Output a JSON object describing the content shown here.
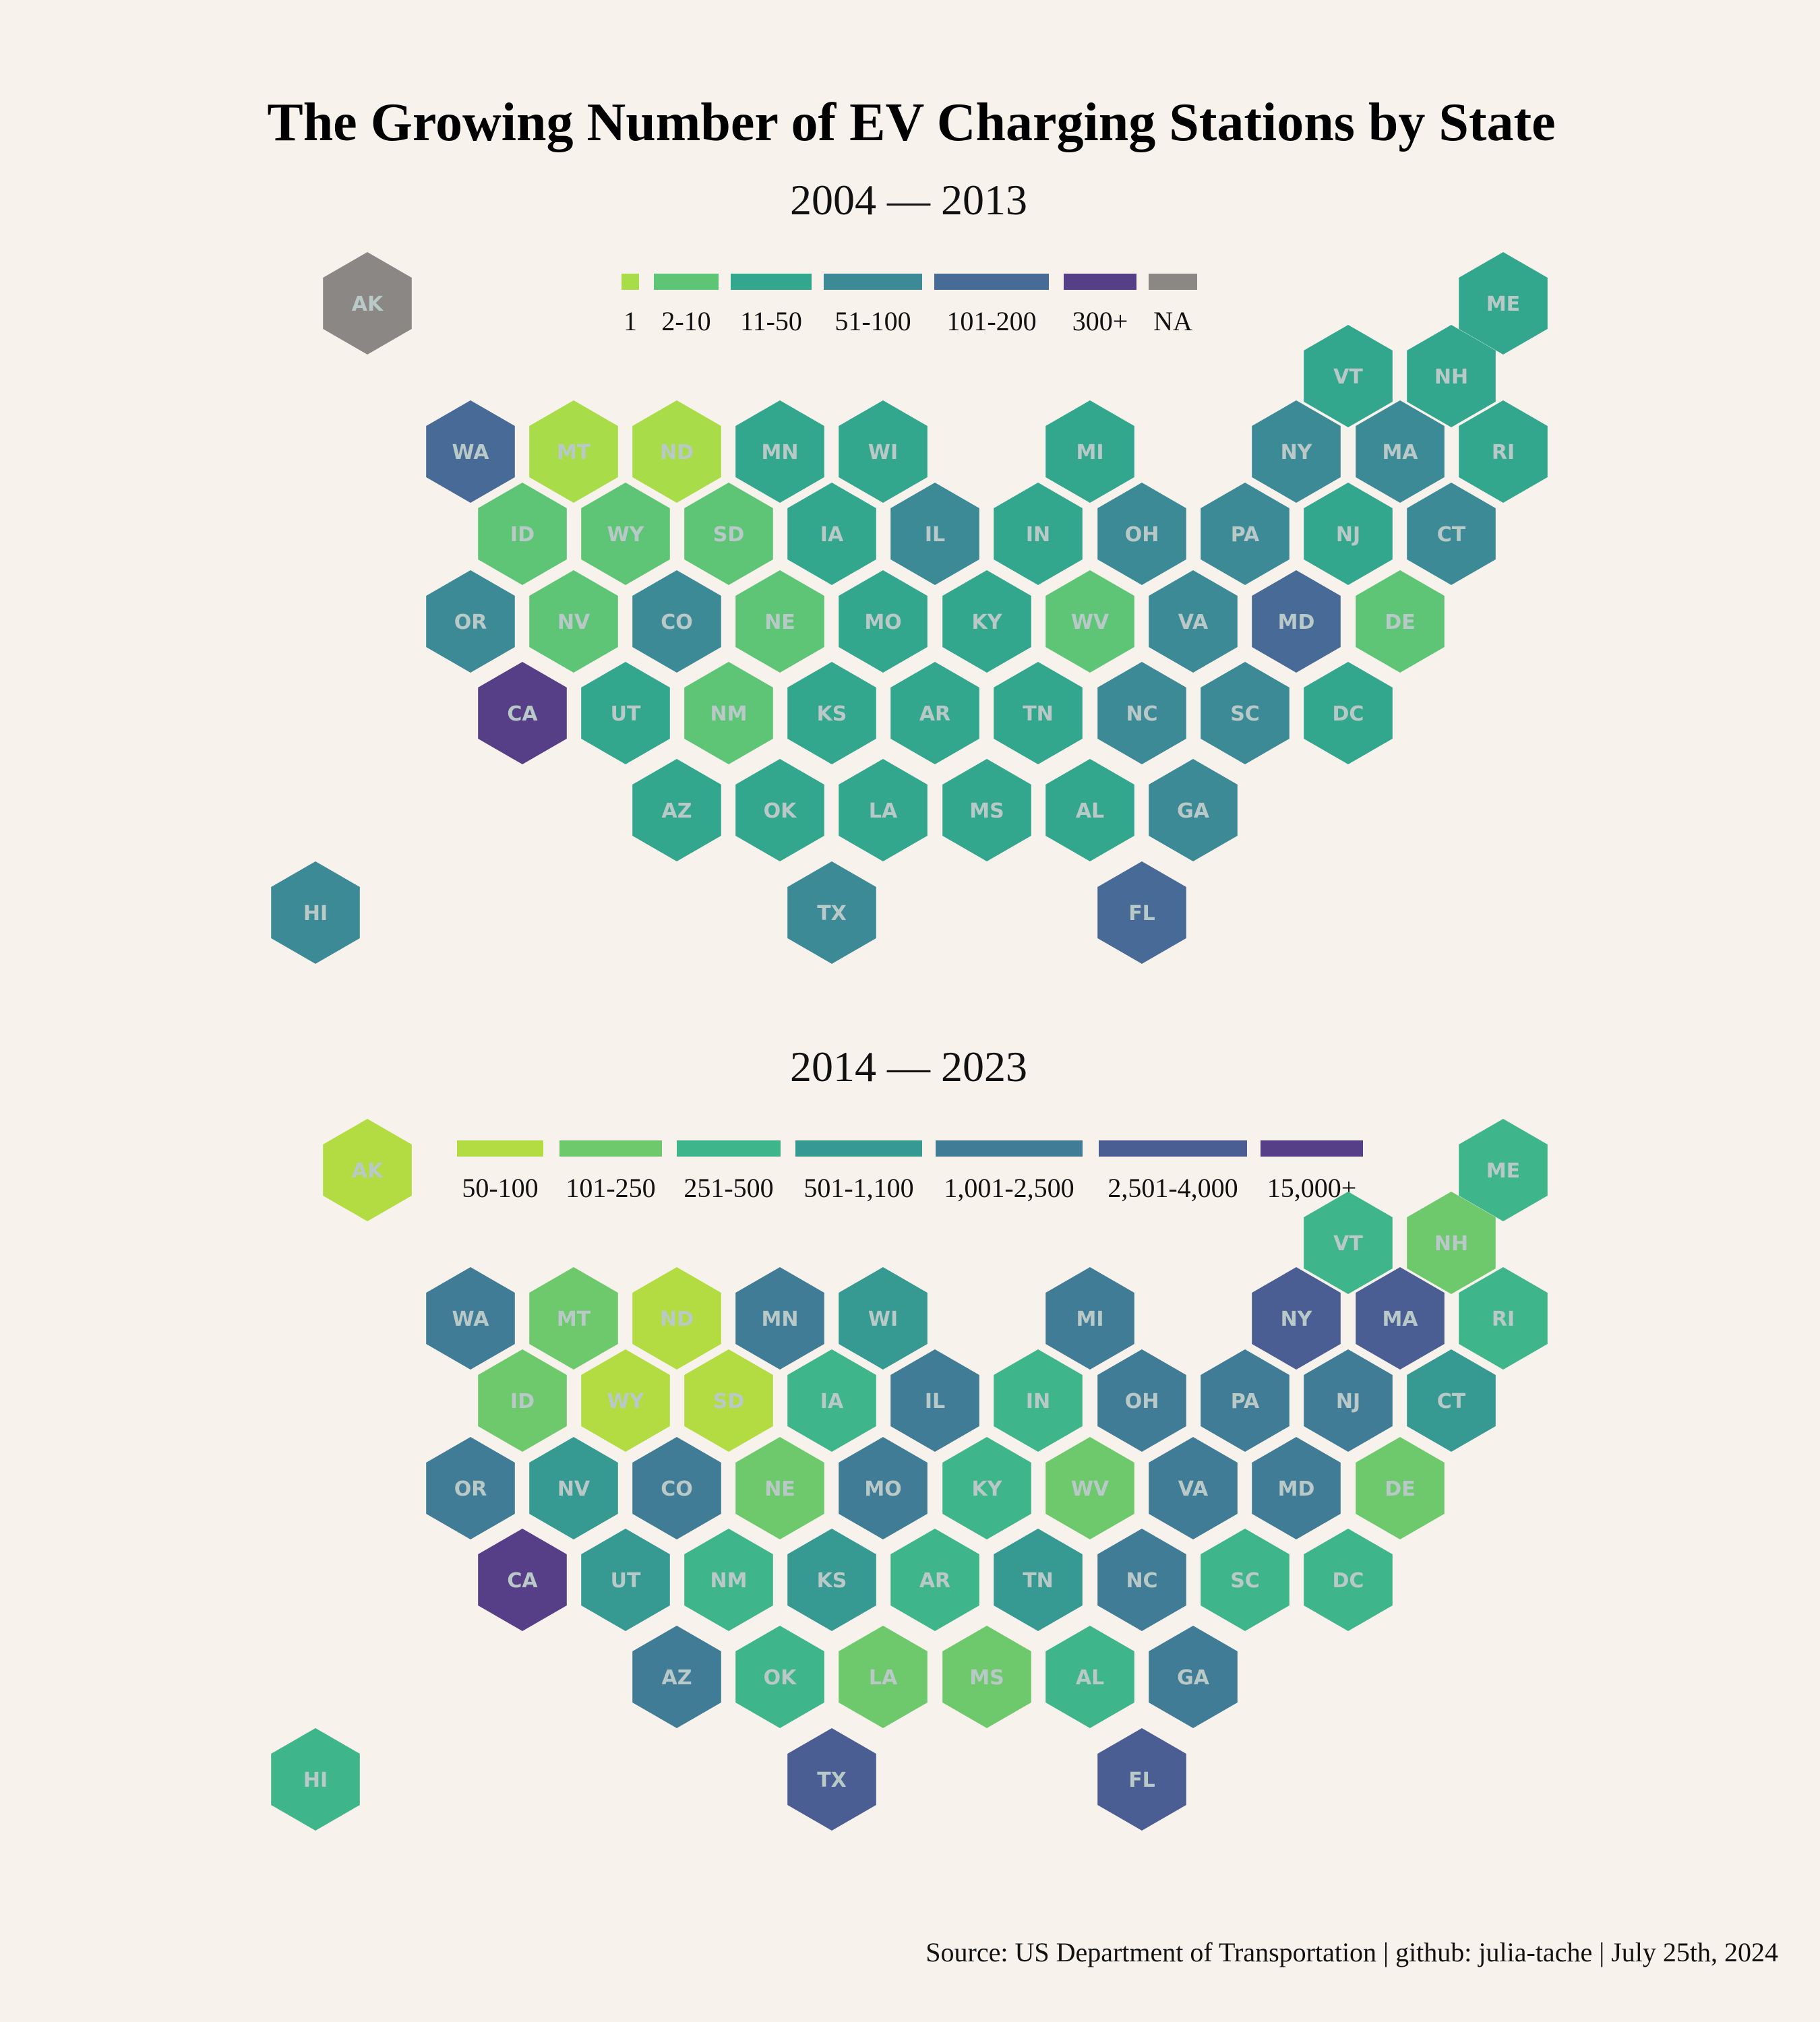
{
  "title": "The Growing Number of EV Charging Stations by State",
  "source": "Source: US Department of Transportation | github: julia-tache | July 25th, 2024",
  "chart_data": [
    {
      "type": "hex tile map",
      "subtitle": "2004 — 2013",
      "legend": [
        {
          "label": "1",
          "color": "#a8dc48"
        },
        {
          "label": "2-10",
          "color": "#5ec576"
        },
        {
          "label": "11-50",
          "color": "#33a78d"
        },
        {
          "label": "51-100",
          "color": "#3d8a97"
        },
        {
          "label": "101-200",
          "color": "#486a97"
        },
        {
          "label": "300+",
          "color": "#573f88"
        },
        {
          "label": "NA",
          "color": "#8a8785"
        }
      ],
      "states": {
        "AK": "NA",
        "ME": "11-50",
        "VT": "11-50",
        "NH": "11-50",
        "WA": "101-200",
        "MT": "1",
        "ND": "1",
        "MN": "11-50",
        "WI": "11-50",
        "MI": "11-50",
        "NY": "51-100",
        "MA": "51-100",
        "RI": "11-50",
        "ID": "2-10",
        "WY": "2-10",
        "SD": "2-10",
        "IA": "11-50",
        "IL": "51-100",
        "IN": "11-50",
        "OH": "51-100",
        "PA": "51-100",
        "NJ": "11-50",
        "CT": "51-100",
        "OR": "51-100",
        "NV": "2-10",
        "CO": "51-100",
        "NE": "2-10",
        "MO": "11-50",
        "KY": "11-50",
        "WV": "2-10",
        "VA": "51-100",
        "MD": "101-200",
        "DE": "2-10",
        "CA": "300+",
        "UT": "11-50",
        "NM": "2-10",
        "KS": "11-50",
        "AR": "11-50",
        "TN": "11-50",
        "NC": "51-100",
        "SC": "51-100",
        "DC": "11-50",
        "AZ": "11-50",
        "OK": "11-50",
        "LA": "11-50",
        "MS": "11-50",
        "AL": "11-50",
        "GA": "51-100",
        "HI": "51-100",
        "TX": "51-100",
        "FL": "101-200"
      }
    },
    {
      "type": "hex tile map",
      "subtitle": "2014 — 2023",
      "legend": [
        {
          "label": "50-100",
          "color": "#b2dc42"
        },
        {
          "label": "101-250",
          "color": "#6dc96c"
        },
        {
          "label": "251-500",
          "color": "#3eb58a"
        },
        {
          "label": "501-1,100",
          "color": "#369992"
        },
        {
          "label": "1,001-2,500",
          "color": "#417c96"
        },
        {
          "label": "2,501-4,000",
          "color": "#4a5e93"
        },
        {
          "label": "15,000+",
          "color": "#573f88"
        }
      ],
      "states": {
        "AK": "50-100",
        "ME": "251-500",
        "VT": "251-500",
        "NH": "101-250",
        "WA": "1,001-2,500",
        "MT": "101-250",
        "ND": "50-100",
        "MN": "1,001-2,500",
        "WI": "501-1,100",
        "MI": "1,001-2,500",
        "NY": "2,501-4,000",
        "MA": "2,501-4,000",
        "RI": "251-500",
        "ID": "101-250",
        "WY": "50-100",
        "SD": "50-100",
        "IA": "251-500",
        "IL": "1,001-2,500",
        "IN": "251-500",
        "OH": "1,001-2,500",
        "PA": "1,001-2,500",
        "NJ": "1,001-2,500",
        "CT": "501-1,100",
        "OR": "1,001-2,500",
        "NV": "501-1,100",
        "CO": "1,001-2,500",
        "NE": "101-250",
        "MO": "1,001-2,500",
        "KY": "251-500",
        "WV": "101-250",
        "VA": "1,001-2,500",
        "MD": "1,001-2,500",
        "DE": "101-250",
        "CA": "15,000+",
        "UT": "501-1,100",
        "NM": "251-500",
        "KS": "501-1,100",
        "AR": "251-500",
        "TN": "501-1,100",
        "NC": "1,001-2,500",
        "SC": "251-500",
        "DC": "251-500",
        "AZ": "1,001-2,500",
        "OK": "251-500",
        "LA": "101-250",
        "MS": "101-250",
        "AL": "251-500",
        "GA": "1,001-2,500",
        "HI": "251-500",
        "TX": "2,501-4,000",
        "FL": "2,501-4,000"
      }
    }
  ]
}
